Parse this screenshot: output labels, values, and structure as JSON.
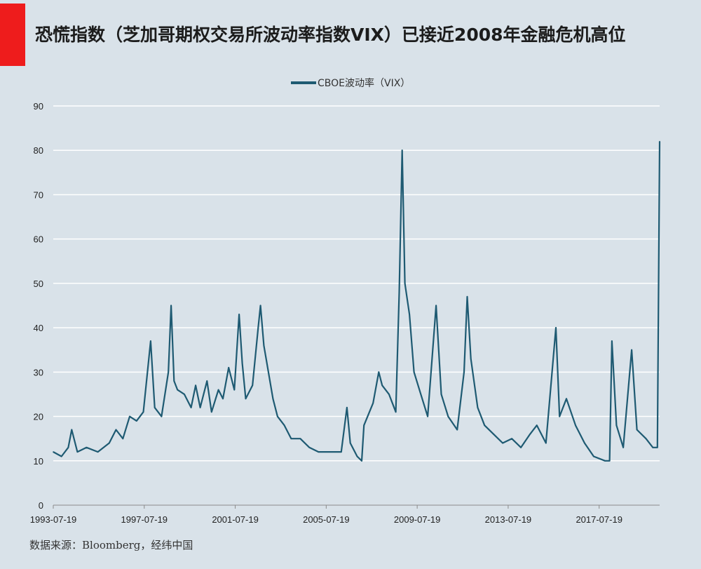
{
  "title": "恐慌指数（芝加哥期权交易所波动率指数VIX）已接近2008年金融危机高位",
  "source": "数据来源：Bloomberg，经纬中国",
  "colors": {
    "line": "#1e5a72",
    "accent": "#ee1c1c",
    "background": "#d9e2e9",
    "grid": "#ffffff"
  },
  "chart_data": {
    "type": "line",
    "series": [
      {
        "name": "CBOE波动率（VIX）",
        "x": [
          1993.54,
          1993.9,
          1994.2,
          1994.35,
          1994.6,
          1995.0,
          1995.5,
          1996.0,
          1996.3,
          1996.6,
          1996.9,
          1997.2,
          1997.5,
          1997.82,
          1998.0,
          1998.3,
          1998.6,
          1998.72,
          1998.85,
          1999.0,
          1999.3,
          1999.6,
          1999.8,
          2000.0,
          2000.3,
          2000.5,
          2000.8,
          2001.0,
          2001.25,
          2001.5,
          2001.71,
          2001.85,
          2002.0,
          2002.3,
          2002.55,
          2002.65,
          2002.8,
          2003.0,
          2003.2,
          2003.4,
          2003.7,
          2004.0,
          2004.4,
          2004.8,
          2005.2,
          2005.8,
          2006.2,
          2006.45,
          2006.6,
          2006.9,
          2007.1,
          2007.2,
          2007.6,
          2007.85,
          2008.0,
          2008.3,
          2008.6,
          2008.75,
          2008.88,
          2009.0,
          2009.2,
          2009.4,
          2009.7,
          2010.0,
          2010.37,
          2010.6,
          2010.9,
          2011.3,
          2011.6,
          2011.74,
          2011.9,
          2012.2,
          2012.5,
          2012.9,
          2013.3,
          2013.7,
          2014.1,
          2014.5,
          2014.8,
          2015.2,
          2015.64,
          2015.8,
          2016.1,
          2016.5,
          2016.9,
          2017.3,
          2017.8,
          2018.0,
          2018.1,
          2018.3,
          2018.6,
          2018.97,
          2019.2,
          2019.6,
          2019.9,
          2020.1,
          2020.2
        ],
        "values": [
          12,
          11,
          13,
          17,
          12,
          13,
          12,
          14,
          17,
          15,
          20,
          19,
          21,
          37,
          22,
          20,
          30,
          45,
          28,
          26,
          25,
          22,
          27,
          22,
          28,
          21,
          26,
          24,
          31,
          26,
          43,
          32,
          24,
          27,
          40,
          45,
          36,
          30,
          24,
          20,
          18,
          15,
          15,
          13,
          12,
          12,
          12,
          22,
          14,
          11,
          10,
          18,
          23,
          30,
          27,
          25,
          21,
          48,
          80,
          50,
          43,
          30,
          25,
          20,
          45,
          25,
          20,
          17,
          30,
          47,
          33,
          22,
          18,
          16,
          14,
          15,
          13,
          16,
          18,
          14,
          40,
          20,
          24,
          18,
          14,
          11,
          10,
          10,
          37,
          18,
          13,
          35,
          17,
          15,
          13,
          13,
          82
        ]
      }
    ],
    "x_ticks": [
      1993.54,
      1997.54,
      2001.54,
      2005.54,
      2009.54,
      2013.54,
      2017.54
    ],
    "x_tick_labels": [
      "1993-07-19",
      "1997-07-19",
      "2001-07-19",
      "2005-07-19",
      "2009-07-19",
      "2013-07-19",
      "2017-07-19"
    ],
    "y_ticks": [
      0,
      10,
      20,
      30,
      40,
      50,
      60,
      70,
      80,
      90
    ],
    "ylim": [
      0,
      90
    ],
    "xlim": [
      1993.54,
      2020.2
    ],
    "grid": "horizontal",
    "legend": "top-center"
  }
}
